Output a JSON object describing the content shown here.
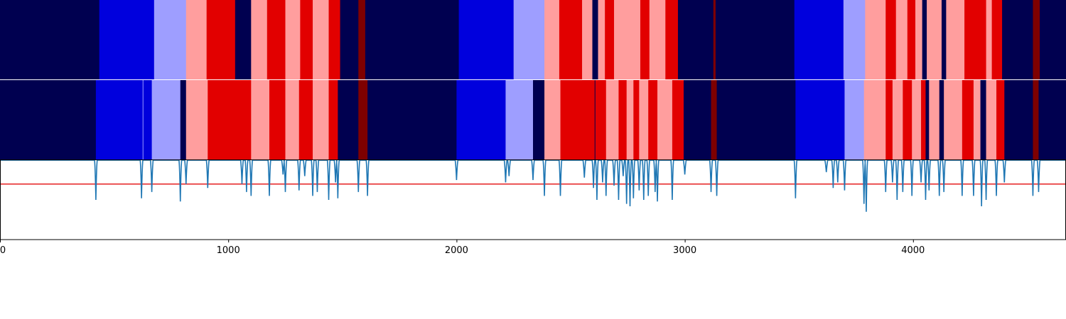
{
  "chart_data": {
    "type": "heatmap",
    "x_range": [
      0,
      4670
    ],
    "x_ticks": [
      0,
      1000,
      2000,
      3000,
      4000
    ],
    "grid": false,
    "palette": {
      "0": "#000050",
      "1": "#0000dd",
      "2": "#9e9eff",
      "3": "#ff9e9e",
      "4": "#e20000",
      "5": "#7e0000"
    },
    "track_top": [
      [
        0,
        435,
        0
      ],
      [
        435,
        675,
        1
      ],
      [
        675,
        815,
        2
      ],
      [
        815,
        905,
        3
      ],
      [
        905,
        1030,
        4
      ],
      [
        1030,
        1100,
        0
      ],
      [
        1100,
        1170,
        3
      ],
      [
        1170,
        1250,
        4
      ],
      [
        1250,
        1315,
        3
      ],
      [
        1315,
        1370,
        4
      ],
      [
        1370,
        1440,
        3
      ],
      [
        1440,
        1490,
        4
      ],
      [
        1490,
        1570,
        0
      ],
      [
        1570,
        1600,
        5
      ],
      [
        1600,
        2010,
        0
      ],
      [
        2010,
        2250,
        1
      ],
      [
        2250,
        2385,
        2
      ],
      [
        2385,
        2450,
        3
      ],
      [
        2450,
        2550,
        4
      ],
      [
        2550,
        2595,
        3
      ],
      [
        2595,
        2620,
        0
      ],
      [
        2620,
        2650,
        3
      ],
      [
        2650,
        2690,
        4
      ],
      [
        2690,
        2805,
        3
      ],
      [
        2805,
        2845,
        4
      ],
      [
        2845,
        2915,
        3
      ],
      [
        2915,
        2970,
        4
      ],
      [
        2970,
        3125,
        0
      ],
      [
        3125,
        3135,
        5
      ],
      [
        3135,
        3480,
        0
      ],
      [
        3480,
        3695,
        1
      ],
      [
        3695,
        3790,
        2
      ],
      [
        3790,
        3880,
        3
      ],
      [
        3880,
        3925,
        4
      ],
      [
        3925,
        3975,
        3
      ],
      [
        3975,
        4010,
        4
      ],
      [
        4010,
        4040,
        3
      ],
      [
        4040,
        4060,
        0
      ],
      [
        4060,
        4125,
        3
      ],
      [
        4125,
        4145,
        0
      ],
      [
        4145,
        4225,
        3
      ],
      [
        4225,
        4320,
        4
      ],
      [
        4320,
        4345,
        3
      ],
      [
        4345,
        4390,
        4
      ],
      [
        4390,
        4525,
        0
      ],
      [
        4525,
        4555,
        5
      ],
      [
        4555,
        4670,
        0
      ]
    ],
    "track_bottom": [
      [
        0,
        420,
        0
      ],
      [
        420,
        625,
        1
      ],
      [
        625,
        628,
        2
      ],
      [
        628,
        665,
        1
      ],
      [
        665,
        790,
        2
      ],
      [
        790,
        815,
        0
      ],
      [
        815,
        910,
        3
      ],
      [
        910,
        1100,
        4
      ],
      [
        1100,
        1180,
        3
      ],
      [
        1180,
        1250,
        4
      ],
      [
        1250,
        1310,
        3
      ],
      [
        1310,
        1370,
        4
      ],
      [
        1370,
        1440,
        3
      ],
      [
        1440,
        1480,
        4
      ],
      [
        1480,
        1570,
        0
      ],
      [
        1570,
        1610,
        5
      ],
      [
        1610,
        2000,
        0
      ],
      [
        2000,
        2215,
        1
      ],
      [
        2215,
        2335,
        2
      ],
      [
        2335,
        2385,
        0
      ],
      [
        2385,
        2455,
        3
      ],
      [
        2455,
        2605,
        4
      ],
      [
        2605,
        2608,
        0
      ],
      [
        2608,
        2655,
        4
      ],
      [
        2655,
        2710,
        3
      ],
      [
        2710,
        2745,
        4
      ],
      [
        2745,
        2775,
        3
      ],
      [
        2775,
        2800,
        4
      ],
      [
        2800,
        2840,
        3
      ],
      [
        2840,
        2880,
        4
      ],
      [
        2880,
        2945,
        3
      ],
      [
        2945,
        2995,
        4
      ],
      [
        2995,
        3115,
        0
      ],
      [
        3115,
        3140,
        5
      ],
      [
        3140,
        3485,
        0
      ],
      [
        3485,
        3700,
        1
      ],
      [
        3700,
        3785,
        2
      ],
      [
        3785,
        3880,
        3
      ],
      [
        3880,
        3910,
        4
      ],
      [
        3910,
        3955,
        3
      ],
      [
        3955,
        3995,
        4
      ],
      [
        3995,
        4035,
        3
      ],
      [
        4035,
        4055,
        4
      ],
      [
        4055,
        4070,
        0
      ],
      [
        4070,
        4115,
        3
      ],
      [
        4115,
        4135,
        0
      ],
      [
        4135,
        4215,
        3
      ],
      [
        4215,
        4265,
        4
      ],
      [
        4265,
        4295,
        3
      ],
      [
        4295,
        4320,
        0
      ],
      [
        4320,
        4365,
        3
      ],
      [
        4365,
        4400,
        4
      ],
      [
        4400,
        4525,
        0
      ],
      [
        4525,
        4550,
        5
      ],
      [
        4550,
        4670,
        0
      ]
    ],
    "threshold": 0.7,
    "threshold_color": "#e41a1c",
    "line_color": "#1f77b4",
    "y_range": [
      0,
      1
    ],
    "line_baseline": 1.0,
    "line_dips": [
      [
        420,
        0.5
      ],
      [
        620,
        0.52
      ],
      [
        665,
        0.6
      ],
      [
        790,
        0.48
      ],
      [
        815,
        0.7
      ],
      [
        910,
        0.65
      ],
      [
        1060,
        0.7
      ],
      [
        1080,
        0.6
      ],
      [
        1100,
        0.55
      ],
      [
        1180,
        0.55
      ],
      [
        1240,
        0.82
      ],
      [
        1250,
        0.6
      ],
      [
        1310,
        0.62
      ],
      [
        1335,
        0.8
      ],
      [
        1370,
        0.55
      ],
      [
        1390,
        0.6
      ],
      [
        1440,
        0.5
      ],
      [
        1470,
        0.72
      ],
      [
        1480,
        0.52
      ],
      [
        1570,
        0.6
      ],
      [
        1610,
        0.55
      ],
      [
        2000,
        0.75
      ],
      [
        2215,
        0.72
      ],
      [
        2230,
        0.8
      ],
      [
        2335,
        0.75
      ],
      [
        2385,
        0.55
      ],
      [
        2455,
        0.55
      ],
      [
        2560,
        0.78
      ],
      [
        2600,
        0.65
      ],
      [
        2615,
        0.5
      ],
      [
        2640,
        0.72
      ],
      [
        2655,
        0.55
      ],
      [
        2690,
        0.68
      ],
      [
        2710,
        0.5
      ],
      [
        2730,
        0.8
      ],
      [
        2745,
        0.45
      ],
      [
        2760,
        0.42
      ],
      [
        2775,
        0.52
      ],
      [
        2800,
        0.62
      ],
      [
        2820,
        0.5
      ],
      [
        2840,
        0.55
      ],
      [
        2870,
        0.6
      ],
      [
        2880,
        0.48
      ],
      [
        2945,
        0.5
      ],
      [
        3000,
        0.82
      ],
      [
        3115,
        0.6
      ],
      [
        3140,
        0.55
      ],
      [
        3485,
        0.52
      ],
      [
        3620,
        0.85
      ],
      [
        3650,
        0.65
      ],
      [
        3670,
        0.72
      ],
      [
        3700,
        0.62
      ],
      [
        3785,
        0.45
      ],
      [
        3795,
        0.35
      ],
      [
        3880,
        0.6
      ],
      [
        3910,
        0.72
      ],
      [
        3930,
        0.5
      ],
      [
        3955,
        0.6
      ],
      [
        3995,
        0.55
      ],
      [
        4035,
        0.72
      ],
      [
        4055,
        0.5
      ],
      [
        4070,
        0.62
      ],
      [
        4115,
        0.55
      ],
      [
        4135,
        0.6
      ],
      [
        4215,
        0.55
      ],
      [
        4265,
        0.55
      ],
      [
        4300,
        0.42
      ],
      [
        4320,
        0.5
      ],
      [
        4365,
        0.55
      ],
      [
        4400,
        0.72
      ],
      [
        4525,
        0.55
      ],
      [
        4550,
        0.6
      ]
    ]
  }
}
